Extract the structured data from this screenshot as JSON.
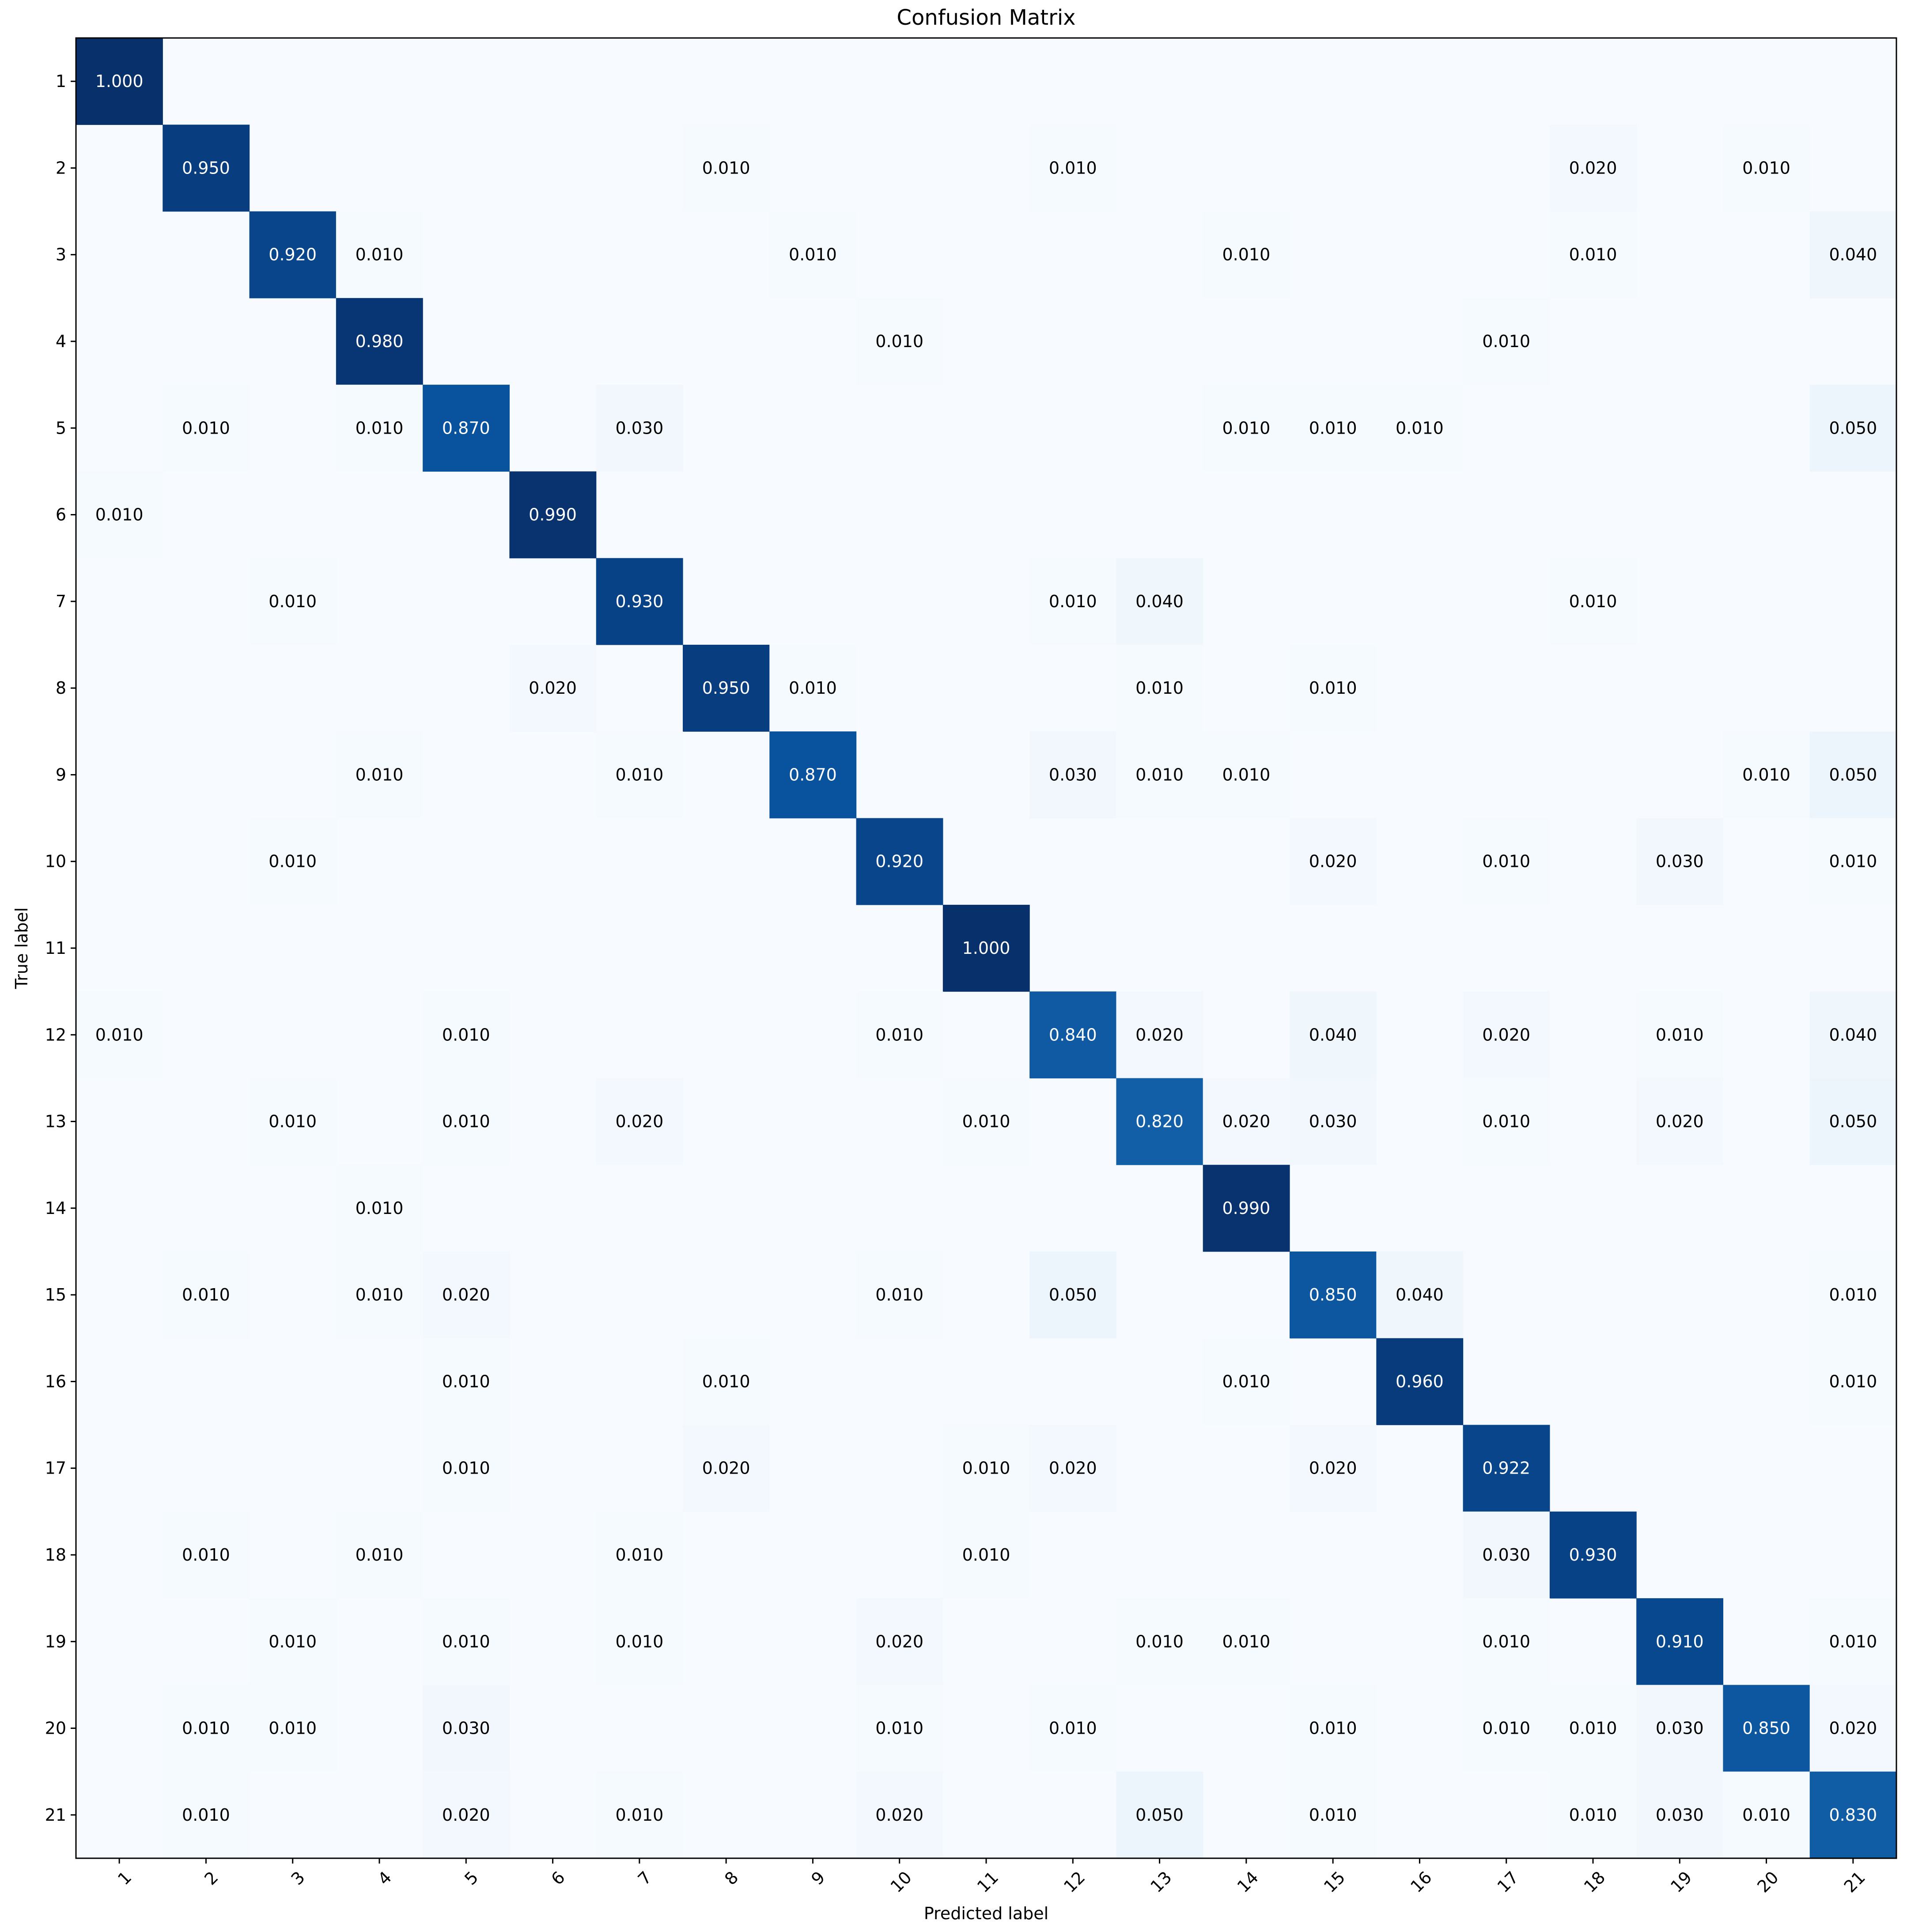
{
  "chart_data": {
    "type": "heatmap",
    "title": "Confusion Matrix",
    "xlabel": "Predicted label",
    "ylabel": "True label",
    "colormap": "Blues",
    "value_range": [
      0,
      1
    ],
    "grid": false,
    "x_tick_rotation_deg": 45,
    "color_low": "#f7fbff",
    "color_high": "#08306b",
    "text_color_dark": "#000000",
    "text_color_light": "#ffffff",
    "x_labels": [
      "1",
      "2",
      "3",
      "4",
      "5",
      "6",
      "7",
      "8",
      "9",
      "10",
      "11",
      "12",
      "13",
      "14",
      "15",
      "16",
      "17",
      "18",
      "19",
      "20",
      "21"
    ],
    "y_labels": [
      "1",
      "2",
      "3",
      "4",
      "5",
      "6",
      "7",
      "8",
      "9",
      "10",
      "11",
      "12",
      "13",
      "14",
      "15",
      "16",
      "17",
      "18",
      "19",
      "20",
      "21"
    ],
    "cells": [
      {
        "row": 1,
        "col": 1,
        "value": 1.0,
        "label": "1.000"
      },
      {
        "row": 2,
        "col": 2,
        "value": 0.95,
        "label": "0.950"
      },
      {
        "row": 2,
        "col": 8,
        "value": 0.01,
        "label": "0.010"
      },
      {
        "row": 2,
        "col": 12,
        "value": 0.01,
        "label": "0.010"
      },
      {
        "row": 2,
        "col": 18,
        "value": 0.02,
        "label": "0.020"
      },
      {
        "row": 2,
        "col": 20,
        "value": 0.01,
        "label": "0.010"
      },
      {
        "row": 3,
        "col": 3,
        "value": 0.92,
        "label": "0.920"
      },
      {
        "row": 3,
        "col": 4,
        "value": 0.01,
        "label": "0.010"
      },
      {
        "row": 3,
        "col": 9,
        "value": 0.01,
        "label": "0.010"
      },
      {
        "row": 3,
        "col": 14,
        "value": 0.01,
        "label": "0.010"
      },
      {
        "row": 3,
        "col": 18,
        "value": 0.01,
        "label": "0.010"
      },
      {
        "row": 3,
        "col": 21,
        "value": 0.04,
        "label": "0.040"
      },
      {
        "row": 4,
        "col": 4,
        "value": 0.98,
        "label": "0.980"
      },
      {
        "row": 4,
        "col": 10,
        "value": 0.01,
        "label": "0.010"
      },
      {
        "row": 4,
        "col": 17,
        "value": 0.01,
        "label": "0.010"
      },
      {
        "row": 5,
        "col": 2,
        "value": 0.01,
        "label": "0.010"
      },
      {
        "row": 5,
        "col": 4,
        "value": 0.01,
        "label": "0.010"
      },
      {
        "row": 5,
        "col": 5,
        "value": 0.87,
        "label": "0.870"
      },
      {
        "row": 5,
        "col": 7,
        "value": 0.03,
        "label": "0.030"
      },
      {
        "row": 5,
        "col": 14,
        "value": 0.01,
        "label": "0.010"
      },
      {
        "row": 5,
        "col": 15,
        "value": 0.01,
        "label": "0.010"
      },
      {
        "row": 5,
        "col": 16,
        "value": 0.01,
        "label": "0.010"
      },
      {
        "row": 5,
        "col": 21,
        "value": 0.05,
        "label": "0.050"
      },
      {
        "row": 6,
        "col": 1,
        "value": 0.01,
        "label": "0.010"
      },
      {
        "row": 6,
        "col": 6,
        "value": 0.99,
        "label": "0.990"
      },
      {
        "row": 7,
        "col": 3,
        "value": 0.01,
        "label": "0.010"
      },
      {
        "row": 7,
        "col": 7,
        "value": 0.93,
        "label": "0.930"
      },
      {
        "row": 7,
        "col": 12,
        "value": 0.01,
        "label": "0.010"
      },
      {
        "row": 7,
        "col": 13,
        "value": 0.04,
        "label": "0.040"
      },
      {
        "row": 7,
        "col": 18,
        "value": 0.01,
        "label": "0.010"
      },
      {
        "row": 8,
        "col": 6,
        "value": 0.02,
        "label": "0.020"
      },
      {
        "row": 8,
        "col": 8,
        "value": 0.95,
        "label": "0.950"
      },
      {
        "row": 8,
        "col": 9,
        "value": 0.01,
        "label": "0.010"
      },
      {
        "row": 8,
        "col": 13,
        "value": 0.01,
        "label": "0.010"
      },
      {
        "row": 8,
        "col": 15,
        "value": 0.01,
        "label": "0.010"
      },
      {
        "row": 9,
        "col": 4,
        "value": 0.01,
        "label": "0.010"
      },
      {
        "row": 9,
        "col": 7,
        "value": 0.01,
        "label": "0.010"
      },
      {
        "row": 9,
        "col": 9,
        "value": 0.87,
        "label": "0.870"
      },
      {
        "row": 9,
        "col": 12,
        "value": 0.03,
        "label": "0.030"
      },
      {
        "row": 9,
        "col": 13,
        "value": 0.01,
        "label": "0.010"
      },
      {
        "row": 9,
        "col": 14,
        "value": 0.01,
        "label": "0.010"
      },
      {
        "row": 9,
        "col": 20,
        "value": 0.01,
        "label": "0.010"
      },
      {
        "row": 9,
        "col": 21,
        "value": 0.05,
        "label": "0.050"
      },
      {
        "row": 10,
        "col": 3,
        "value": 0.01,
        "label": "0.010"
      },
      {
        "row": 10,
        "col": 10,
        "value": 0.92,
        "label": "0.920"
      },
      {
        "row": 10,
        "col": 15,
        "value": 0.02,
        "label": "0.020"
      },
      {
        "row": 10,
        "col": 17,
        "value": 0.01,
        "label": "0.010"
      },
      {
        "row": 10,
        "col": 19,
        "value": 0.03,
        "label": "0.030"
      },
      {
        "row": 10,
        "col": 21,
        "value": 0.01,
        "label": "0.010"
      },
      {
        "row": 11,
        "col": 11,
        "value": 1.0,
        "label": "1.000"
      },
      {
        "row": 12,
        "col": 1,
        "value": 0.01,
        "label": "0.010"
      },
      {
        "row": 12,
        "col": 5,
        "value": 0.01,
        "label": "0.010"
      },
      {
        "row": 12,
        "col": 10,
        "value": 0.01,
        "label": "0.010"
      },
      {
        "row": 12,
        "col": 12,
        "value": 0.84,
        "label": "0.840"
      },
      {
        "row": 12,
        "col": 13,
        "value": 0.02,
        "label": "0.020"
      },
      {
        "row": 12,
        "col": 15,
        "value": 0.04,
        "label": "0.040"
      },
      {
        "row": 12,
        "col": 17,
        "value": 0.02,
        "label": "0.020"
      },
      {
        "row": 12,
        "col": 19,
        "value": 0.01,
        "label": "0.010"
      },
      {
        "row": 12,
        "col": 21,
        "value": 0.04,
        "label": "0.040"
      },
      {
        "row": 13,
        "col": 3,
        "value": 0.01,
        "label": "0.010"
      },
      {
        "row": 13,
        "col": 5,
        "value": 0.01,
        "label": "0.010"
      },
      {
        "row": 13,
        "col": 7,
        "value": 0.02,
        "label": "0.020"
      },
      {
        "row": 13,
        "col": 11,
        "value": 0.01,
        "label": "0.010"
      },
      {
        "row": 13,
        "col": 13,
        "value": 0.82,
        "label": "0.820"
      },
      {
        "row": 13,
        "col": 14,
        "value": 0.02,
        "label": "0.020"
      },
      {
        "row": 13,
        "col": 15,
        "value": 0.03,
        "label": "0.030"
      },
      {
        "row": 13,
        "col": 17,
        "value": 0.01,
        "label": "0.010"
      },
      {
        "row": 13,
        "col": 19,
        "value": 0.02,
        "label": "0.020"
      },
      {
        "row": 13,
        "col": 21,
        "value": 0.05,
        "label": "0.050"
      },
      {
        "row": 14,
        "col": 4,
        "value": 0.01,
        "label": "0.010"
      },
      {
        "row": 14,
        "col": 14,
        "value": 0.99,
        "label": "0.990"
      },
      {
        "row": 15,
        "col": 2,
        "value": 0.01,
        "label": "0.010"
      },
      {
        "row": 15,
        "col": 4,
        "value": 0.01,
        "label": "0.010"
      },
      {
        "row": 15,
        "col": 5,
        "value": 0.02,
        "label": "0.020"
      },
      {
        "row": 15,
        "col": 10,
        "value": 0.01,
        "label": "0.010"
      },
      {
        "row": 15,
        "col": 12,
        "value": 0.05,
        "label": "0.050"
      },
      {
        "row": 15,
        "col": 15,
        "value": 0.85,
        "label": "0.850"
      },
      {
        "row": 15,
        "col": 16,
        "value": 0.04,
        "label": "0.040"
      },
      {
        "row": 15,
        "col": 21,
        "value": 0.01,
        "label": "0.010"
      },
      {
        "row": 16,
        "col": 5,
        "value": 0.01,
        "label": "0.010"
      },
      {
        "row": 16,
        "col": 8,
        "value": 0.01,
        "label": "0.010"
      },
      {
        "row": 16,
        "col": 14,
        "value": 0.01,
        "label": "0.010"
      },
      {
        "row": 16,
        "col": 16,
        "value": 0.96,
        "label": "0.960"
      },
      {
        "row": 16,
        "col": 21,
        "value": 0.01,
        "label": "0.010"
      },
      {
        "row": 17,
        "col": 5,
        "value": 0.01,
        "label": "0.010"
      },
      {
        "row": 17,
        "col": 8,
        "value": 0.02,
        "label": "0.020"
      },
      {
        "row": 17,
        "col": 11,
        "value": 0.01,
        "label": "0.010"
      },
      {
        "row": 17,
        "col": 12,
        "value": 0.02,
        "label": "0.020"
      },
      {
        "row": 17,
        "col": 15,
        "value": 0.02,
        "label": "0.020"
      },
      {
        "row": 17,
        "col": 17,
        "value": 0.922,
        "label": "0.922"
      },
      {
        "row": 18,
        "col": 2,
        "value": 0.01,
        "label": "0.010"
      },
      {
        "row": 18,
        "col": 4,
        "value": 0.01,
        "label": "0.010"
      },
      {
        "row": 18,
        "col": 7,
        "value": 0.01,
        "label": "0.010"
      },
      {
        "row": 18,
        "col": 11,
        "value": 0.01,
        "label": "0.010"
      },
      {
        "row": 18,
        "col": 17,
        "value": 0.03,
        "label": "0.030"
      },
      {
        "row": 18,
        "col": 18,
        "value": 0.93,
        "label": "0.930"
      },
      {
        "row": 19,
        "col": 3,
        "value": 0.01,
        "label": "0.010"
      },
      {
        "row": 19,
        "col": 5,
        "value": 0.01,
        "label": "0.010"
      },
      {
        "row": 19,
        "col": 7,
        "value": 0.01,
        "label": "0.010"
      },
      {
        "row": 19,
        "col": 10,
        "value": 0.02,
        "label": "0.020"
      },
      {
        "row": 19,
        "col": 13,
        "value": 0.01,
        "label": "0.010"
      },
      {
        "row": 19,
        "col": 14,
        "value": 0.01,
        "label": "0.010"
      },
      {
        "row": 19,
        "col": 17,
        "value": 0.01,
        "label": "0.010"
      },
      {
        "row": 19,
        "col": 19,
        "value": 0.91,
        "label": "0.910"
      },
      {
        "row": 19,
        "col": 21,
        "value": 0.01,
        "label": "0.010"
      },
      {
        "row": 20,
        "col": 2,
        "value": 0.01,
        "label": "0.010"
      },
      {
        "row": 20,
        "col": 3,
        "value": 0.01,
        "label": "0.010"
      },
      {
        "row": 20,
        "col": 5,
        "value": 0.03,
        "label": "0.030"
      },
      {
        "row": 20,
        "col": 10,
        "value": 0.01,
        "label": "0.010"
      },
      {
        "row": 20,
        "col": 12,
        "value": 0.01,
        "label": "0.010"
      },
      {
        "row": 20,
        "col": 15,
        "value": 0.01,
        "label": "0.010"
      },
      {
        "row": 20,
        "col": 17,
        "value": 0.01,
        "label": "0.010"
      },
      {
        "row": 20,
        "col": 18,
        "value": 0.01,
        "label": "0.010"
      },
      {
        "row": 20,
        "col": 19,
        "value": 0.03,
        "label": "0.030"
      },
      {
        "row": 20,
        "col": 20,
        "value": 0.85,
        "label": "0.850"
      },
      {
        "row": 20,
        "col": 21,
        "value": 0.02,
        "label": "0.020"
      },
      {
        "row": 21,
        "col": 2,
        "value": 0.01,
        "label": "0.010"
      },
      {
        "row": 21,
        "col": 5,
        "value": 0.02,
        "label": "0.020"
      },
      {
        "row": 21,
        "col": 7,
        "value": 0.01,
        "label": "0.010"
      },
      {
        "row": 21,
        "col": 10,
        "value": 0.02,
        "label": "0.020"
      },
      {
        "row": 21,
        "col": 13,
        "value": 0.05,
        "label": "0.050"
      },
      {
        "row": 21,
        "col": 15,
        "value": 0.01,
        "label": "0.010"
      },
      {
        "row": 21,
        "col": 18,
        "value": 0.01,
        "label": "0.010"
      },
      {
        "row": 21,
        "col": 19,
        "value": 0.03,
        "label": "0.030"
      },
      {
        "row": 21,
        "col": 20,
        "value": 0.01,
        "label": "0.010"
      },
      {
        "row": 21,
        "col": 21,
        "value": 0.83,
        "label": "0.830"
      }
    ]
  }
}
